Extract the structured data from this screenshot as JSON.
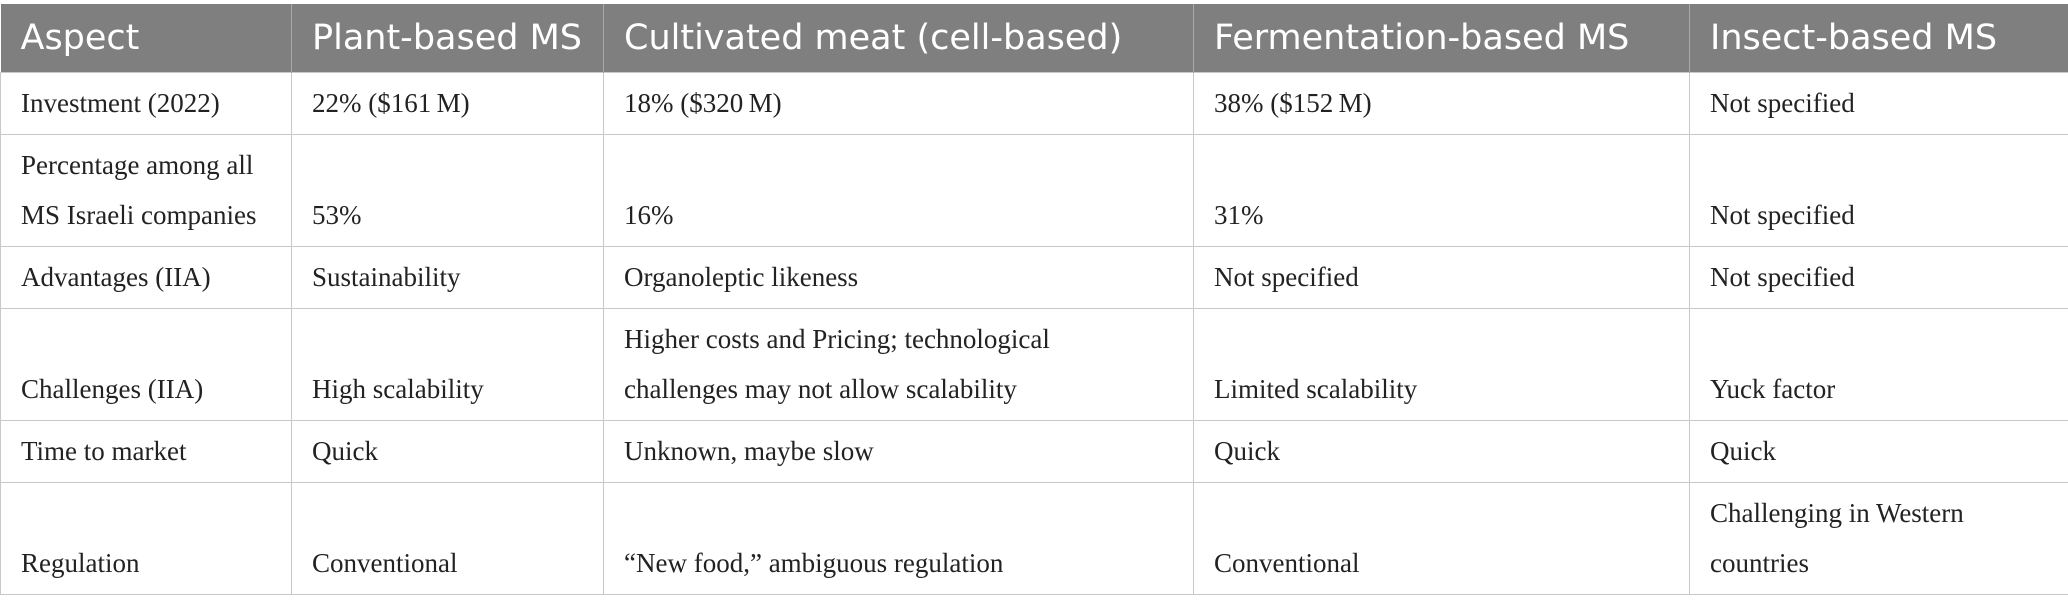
{
  "table": {
    "headers": [
      "Aspect",
      "Plant-based MS",
      "Cultivated meat (cell-based)",
      "Fermentation-based MS",
      "Insect-based MS"
    ],
    "rows": [
      [
        "Investment (2022)",
        "22% ($161 M)",
        "18% ($320 M)",
        "38% ($152 M)",
        "Not specified"
      ],
      [
        "Percentage among all\nMS Israeli companies",
        "53%",
        "16%",
        "31%",
        "Not specified"
      ],
      [
        "Advantages (IIA)",
        "Sustainability",
        "Organoleptic likeness",
        "Not specified",
        "Not specified"
      ],
      [
        "Challenges (IIA)",
        "High scalability",
        "Higher costs and Pricing; technological\nchallenges may not allow scalability",
        "Limited scalability",
        "Yuck factor"
      ],
      [
        "Time to market",
        "Quick",
        "Unknown, maybe slow",
        "Quick",
        "Quick"
      ],
      [
        "Regulation",
        "Conventional",
        "“New food,” ambiguous regulation",
        "Conventional",
        "Challenging in Western\ncountries"
      ]
    ]
  },
  "colors": {
    "header_bg": "#7f7f7f",
    "header_text": "#ffffff",
    "grid_line": "#c8c8c8"
  }
}
